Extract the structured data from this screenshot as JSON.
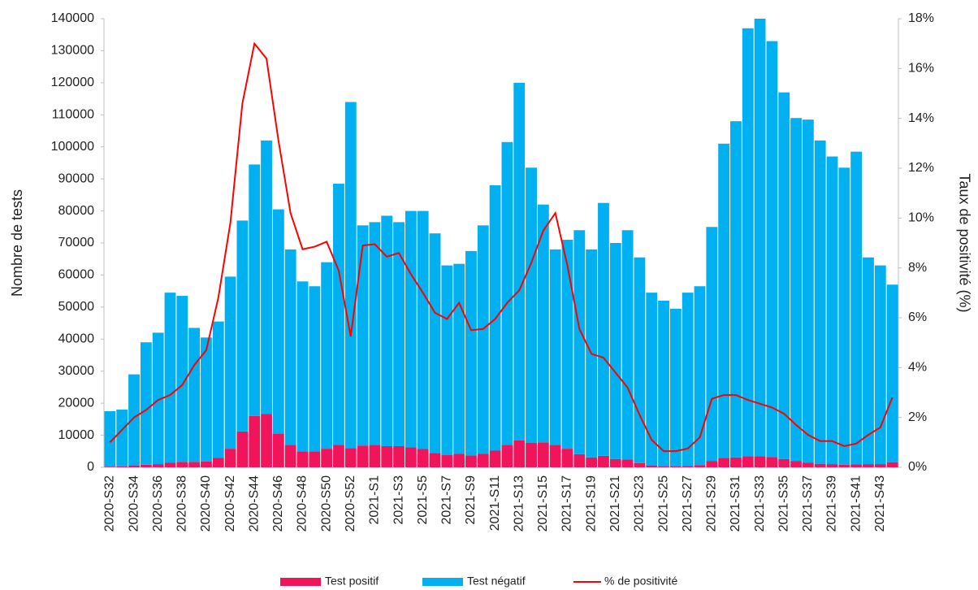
{
  "chart_data": {
    "type": "bar",
    "stacked": true,
    "y_label": "Nombre de tests",
    "y2_label": "Taux de positivité (%)",
    "categories": [
      "2020-S32",
      null,
      "2020-S34",
      null,
      "2020-S36",
      null,
      "2020-S38",
      null,
      "2020-S40",
      null,
      "2020-S42",
      null,
      "2020-S44",
      null,
      "2020-S46",
      null,
      "2020-S48",
      null,
      "2020-S50",
      null,
      "2020-S52",
      null,
      "2021-S1",
      null,
      "2021-S3",
      null,
      "2021-S5",
      null,
      "2021-S7",
      null,
      "2021-S9",
      null,
      "2021-S11",
      null,
      "2021-S13",
      null,
      "2021-S15",
      null,
      "2021-S17",
      null,
      "2021-S19",
      null,
      "2021-S21",
      null,
      "2021-S23",
      null,
      "2021-S25",
      null,
      "2021-S27",
      null,
      "2021-S29",
      null,
      "2021-S31",
      null,
      "2021-S33",
      null,
      "2021-S35",
      null,
      "2021-S37",
      null,
      "2021-S39",
      null,
      "2021-S41",
      null,
      "2021-S43",
      null
    ],
    "series": [
      {
        "name": "Test positif",
        "color": "#f0145a",
        "values": [
          200,
          300,
          600,
          800,
          1000,
          1400,
          1700,
          1700,
          1800,
          3000,
          5800,
          11200,
          16000,
          16700,
          10500,
          7000,
          5000,
          5000,
          5800,
          7000,
          6000,
          6800,
          7000,
          6600,
          6600,
          6200,
          5700,
          4500,
          3800,
          4200,
          3700,
          4200,
          5200,
          7000,
          8400,
          7700,
          7800,
          7000,
          5800,
          4100,
          3100,
          3600,
          2600,
          2400,
          1300,
          600,
          350,
          350,
          400,
          700,
          2000,
          2900,
          3100,
          3500,
          3500,
          3200,
          2600,
          1900,
          1400,
          1100,
          1000,
          800,
          900,
          1000,
          1000,
          1600
        ]
      },
      {
        "name": "Test négatif",
        "color": "#00b0f0",
        "values": [
          17300,
          17700,
          28400,
          38200,
          41000,
          53100,
          51800,
          41800,
          38700,
          42500,
          53700,
          65800,
          78500,
          85300,
          70000,
          61000,
          53000,
          51500,
          58200,
          81500,
          108000,
          68700,
          69500,
          71900,
          69900,
          73800,
          74300,
          68500,
          59200,
          59300,
          63800,
          71300,
          82800,
          94500,
          111600,
          85800,
          74200,
          61000,
          65200,
          69900,
          64900,
          78900,
          67400,
          71600,
          64200,
          53900,
          51650,
          49150,
          54100,
          55800,
          73000,
          98100,
          104900,
          133500,
          136500,
          129800,
          114400,
          107100,
          107100,
          100900,
          96000,
          92700,
          97600,
          64500,
          62000,
          55400
        ]
      },
      {
        "name": "% de positivité",
        "type": "line",
        "axis": "y2",
        "color": "#ff0000",
        "values": [
          1.0,
          1.5,
          2.0,
          2.3,
          2.7,
          2.9,
          3.3,
          4.1,
          4.7,
          6.8,
          9.8,
          14.6,
          17.0,
          16.4,
          13.1,
          10.2,
          8.75,
          8.85,
          9.05,
          7.9,
          5.25,
          8.9,
          8.95,
          8.45,
          8.6,
          7.75,
          7.0,
          6.2,
          5.95,
          6.6,
          5.5,
          5.55,
          5.95,
          6.6,
          7.1,
          8.2,
          9.5,
          10.2,
          8.1,
          5.55,
          4.55,
          4.4,
          3.8,
          3.2,
          2.1,
          1.1,
          0.65,
          0.65,
          0.75,
          1.2,
          2.75,
          2.9,
          2.9,
          2.7,
          2.55,
          2.4,
          2.15,
          1.7,
          1.3,
          1.05,
          1.05,
          0.85,
          0.95,
          1.3,
          1.6,
          2.8
        ]
      }
    ],
    "ylim": [
      0,
      140000
    ],
    "yticks": [
      0,
      10000,
      20000,
      30000,
      40000,
      50000,
      60000,
      70000,
      80000,
      90000,
      100000,
      110000,
      120000,
      130000,
      140000
    ],
    "y2lim": [
      0,
      18
    ],
    "y2ticks": [
      {
        "value": 0,
        "label": "0%"
      },
      {
        "value": 2,
        "label": "2%"
      },
      {
        "value": 4,
        "label": "4%"
      },
      {
        "value": 6,
        "label": "6%"
      },
      {
        "value": 8,
        "label": "8%"
      },
      {
        "value": 10,
        "label": "10%"
      },
      {
        "value": 12,
        "label": "12%"
      },
      {
        "value": 14,
        "label": "14%"
      },
      {
        "value": 16,
        "label": "16%"
      },
      {
        "value": 18,
        "label": "18%"
      }
    ],
    "legend": "bottom",
    "grid": false
  }
}
